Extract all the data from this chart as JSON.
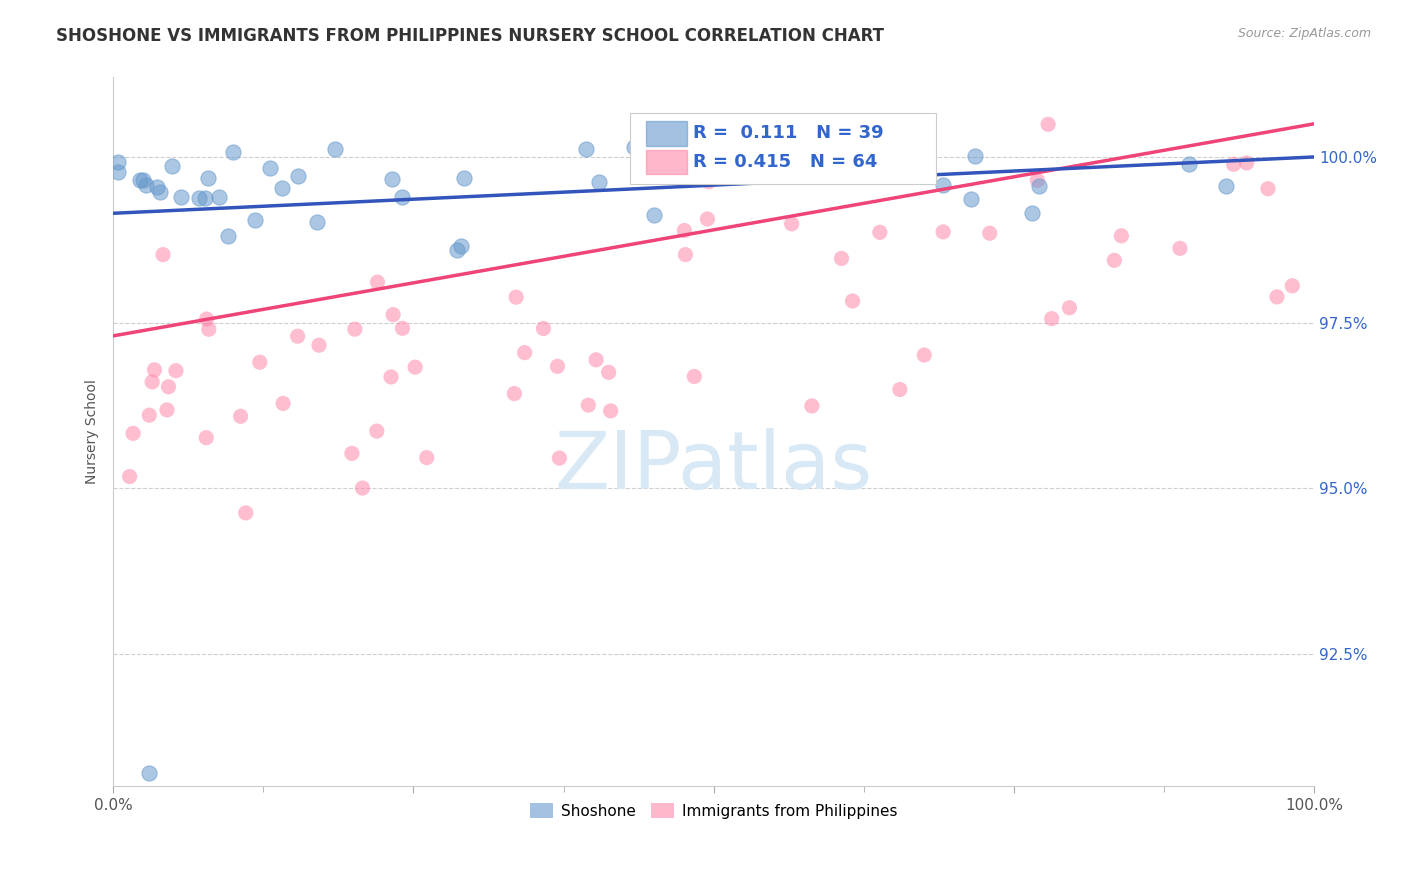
{
  "title": "SHOSHONE VS IMMIGRANTS FROM PHILIPPINES NURSERY SCHOOL CORRELATION CHART",
  "source": "Source: ZipAtlas.com",
  "ylabel": "Nursery School",
  "x_range": [
    0.0,
    100.0
  ],
  "y_range": [
    90.5,
    101.2
  ],
  "blue_R": 0.111,
  "blue_N": 39,
  "pink_R": 0.415,
  "pink_N": 64,
  "blue_color": "#6699CC",
  "pink_color": "#FF88AA",
  "blue_line_color": "#3355BB",
  "pink_line_color": "#EE4477",
  "background_color": "#FFFFFF",
  "blue_line_y0": 99.15,
  "blue_line_y1": 100.0,
  "pink_line_y0": 97.3,
  "pink_line_y1": 100.5,
  "ytick_positions": [
    92.5,
    95.0,
    97.5,
    100.0
  ],
  "ytick_labels": [
    "92.5%",
    "95.0%",
    "97.5%",
    "100.0%"
  ],
  "legend_entries": [
    "Shoshone",
    "Immigrants from Philippines"
  ],
  "grid_color": "#BBBBBB",
  "watermark_color": "#D8E8F5",
  "title_fontsize": 12,
  "source_fontsize": 9,
  "axis_label_fontsize": 10,
  "tick_fontsize": 11
}
